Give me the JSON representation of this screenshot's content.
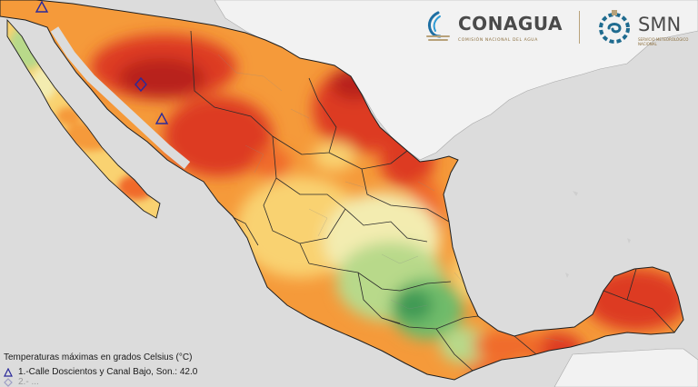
{
  "logos": {
    "conagua": {
      "name": "CONAGUA",
      "subtitle": "COMISIÓN NACIONAL DEL AGUA"
    },
    "smn": {
      "name": "SMN",
      "subtitle": "SERVICIO METEOROLÓGICO NACIONAL"
    }
  },
  "legend": {
    "title": "Temperaturas máximas en grados Celsius (°C)",
    "items": [
      {
        "text": "1.-Calle Doscientos y Canal Bajo, Son.: 42.0",
        "marker": "triangle-icon"
      },
      {
        "text": "2.- ...",
        "marker": "diamond-icon"
      }
    ]
  },
  "colors": {
    "ocean": "#dcdcdc",
    "land_outside": "#f2f2f2",
    "hot_deep": "#b8201f",
    "hot": "#dd3a22",
    "warm": "#f06a2b",
    "orange": "#f59a3a",
    "yellow": "#f9d271",
    "light": "#f3ecb0",
    "green_light": "#b8d98a",
    "green": "#6fbb6a",
    "green_dark": "#3f9a55",
    "marker": "#2b2a9a"
  }
}
